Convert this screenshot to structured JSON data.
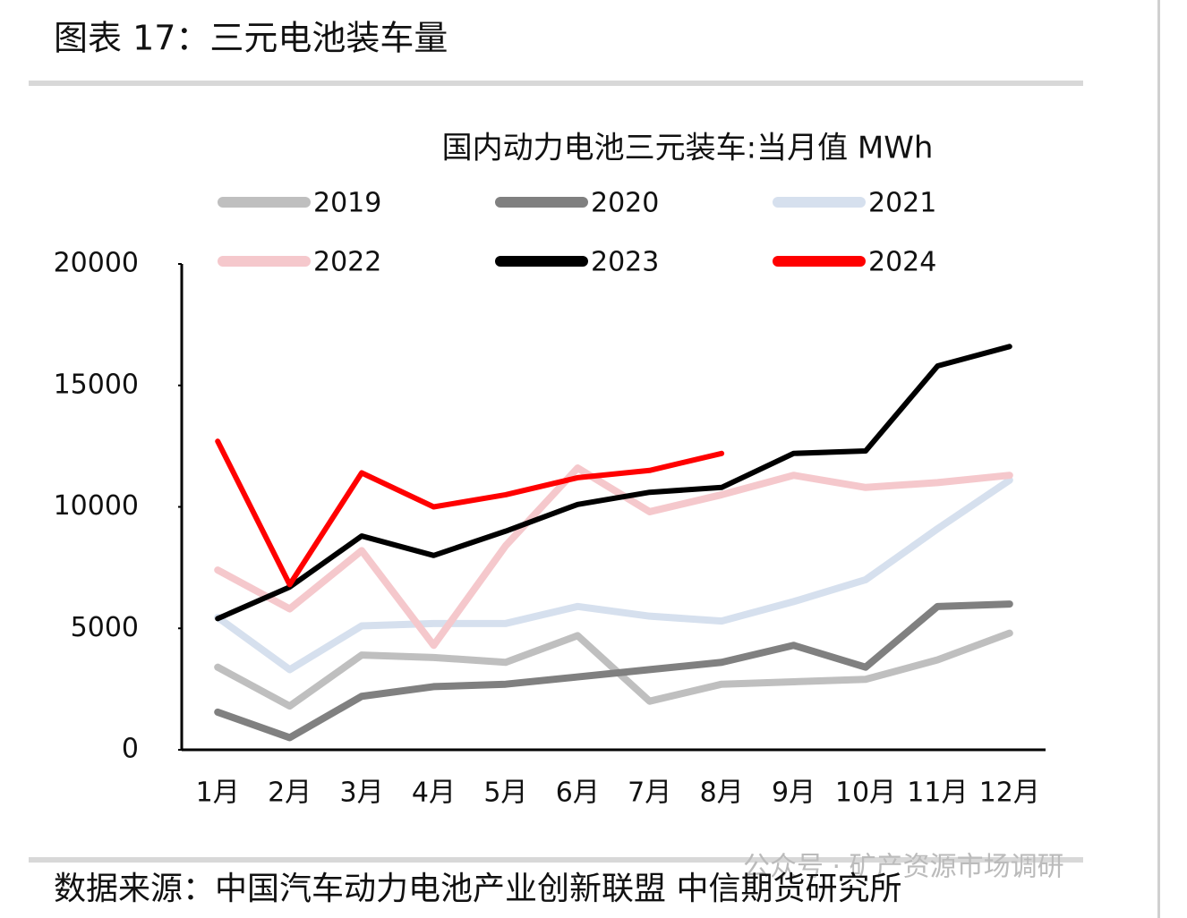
{
  "header": {
    "title": "图表 17：三元电池装车量"
  },
  "chart_data": {
    "type": "line",
    "title": "国内动力电池三元装车:当月值 MWh",
    "categories": [
      "1月",
      "2月",
      "3月",
      "4月",
      "5月",
      "6月",
      "7月",
      "8月",
      "9月",
      "10月",
      "11月",
      "12月"
    ],
    "series": [
      {
        "name": "2019",
        "color": "#bfbfbf",
        "values": [
          3400,
          1800,
          3900,
          3800,
          3600,
          4700,
          2000,
          2700,
          2800,
          2900,
          3700,
          4800
        ]
      },
      {
        "name": "2020",
        "color": "#808080",
        "values": [
          1550,
          500,
          2200,
          2600,
          2700,
          3000,
          3300,
          3600,
          4300,
          3400,
          5900,
          6000
        ]
      },
      {
        "name": "2021",
        "color": "#d6e0ee",
        "values": [
          5450,
          3300,
          5100,
          5200,
          5200,
          5900,
          5500,
          5300,
          6100,
          7000,
          9100,
          11100
        ]
      },
      {
        "name": "2022",
        "color": "#f5c8cc",
        "values": [
          7400,
          5800,
          8200,
          4300,
          8400,
          11600,
          9800,
          10500,
          11300,
          10800,
          11000,
          11300
        ]
      },
      {
        "name": "2023",
        "color": "#000000",
        "values": [
          5400,
          6700,
          8800,
          8000,
          9000,
          10100,
          10600,
          10800,
          12200,
          12300,
          15800,
          16600
        ]
      },
      {
        "name": "2024",
        "color": "#ff0000",
        "values": [
          12700,
          6800,
          11400,
          10000,
          10500,
          11200,
          11500,
          12200,
          null,
          null,
          null,
          null
        ]
      }
    ],
    "ylim": [
      0,
      20000
    ],
    "yticks": [
      0,
      5000,
      10000,
      15000,
      20000
    ],
    "grid": false,
    "legend": "top"
  },
  "footer": {
    "source": "数据来源：中国汽车动力电池产业创新联盟 中信期货研究所",
    "watermark": "公众号 · 矿产资源市场调研"
  }
}
